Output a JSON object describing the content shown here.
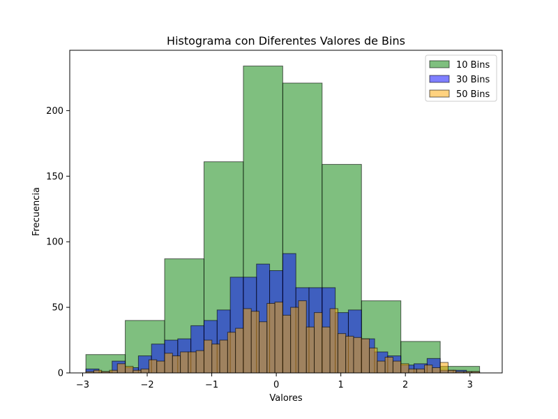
{
  "chart_data": {
    "type": "bar",
    "title": "Histograma con Diferentes Valores de Bins",
    "xlabel": "Valores",
    "ylabel": "Frecuencia",
    "xlim": [
      -3.2,
      3.5
    ],
    "ylim": [
      0,
      246
    ],
    "xticks": [
      -3,
      -2,
      -1,
      0,
      1,
      2,
      3
    ],
    "xtick_labels": [
      "−3",
      "−2",
      "−1",
      "0",
      "1",
      "2",
      "3"
    ],
    "yticks": [
      0,
      50,
      100,
      150,
      200
    ],
    "ytick_labels": [
      "0",
      "50",
      "100",
      "150",
      "200"
    ],
    "grid": false,
    "legend_position": "top-right",
    "series": [
      {
        "name": "10 Bins",
        "color": "#008000",
        "opacity": 0.5,
        "range": [
          -2.95,
          3.15
        ],
        "values": [
          14,
          40,
          87,
          161,
          234,
          221,
          159,
          55,
          24,
          5
        ]
      },
      {
        "name": "30 Bins",
        "color": "#0000ff",
        "opacity": 0.5,
        "range": [
          -2.95,
          3.15
        ],
        "values": [
          3,
          1,
          9,
          4,
          13,
          22,
          25,
          26,
          36,
          40,
          48,
          73,
          73,
          83,
          78,
          91,
          65,
          65,
          65,
          46,
          48,
          26,
          16,
          13,
          6,
          7,
          11,
          2,
          2,
          1
        ]
      },
      {
        "name": "50 Bins",
        "color": "#ffa500",
        "opacity": 0.5,
        "range": [
          -2.95,
          3.15
        ],
        "values": [
          1,
          2,
          1,
          2,
          7,
          5,
          2,
          3,
          10,
          9,
          15,
          13,
          16,
          16,
          17,
          25,
          22,
          25,
          31,
          34,
          49,
          47,
          39,
          53,
          54,
          44,
          50,
          55,
          35,
          46,
          35,
          49,
          30,
          28,
          27,
          26,
          19,
          9,
          12,
          9,
          7,
          3,
          3,
          6,
          4,
          8,
          2,
          1,
          1,
          1
        ]
      }
    ]
  }
}
